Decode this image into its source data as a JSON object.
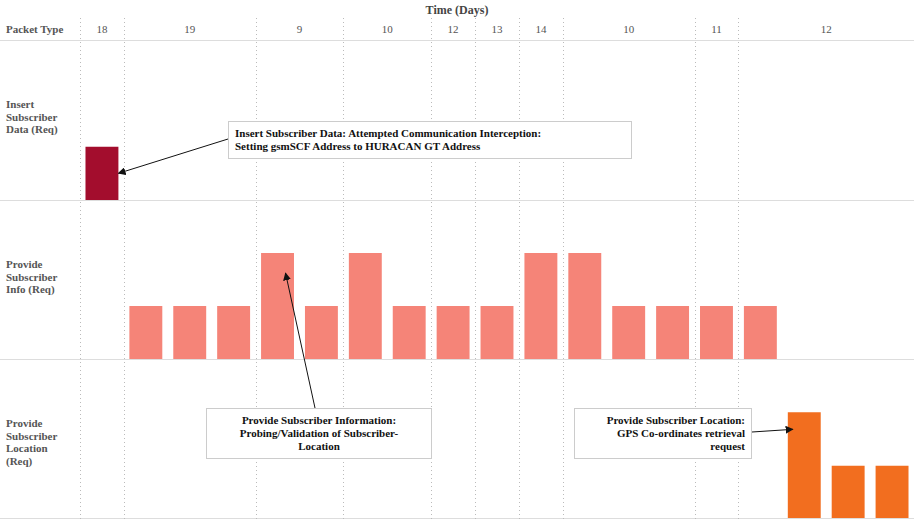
{
  "chart_data": {
    "type": "bar",
    "xlabel": "Time (Days)",
    "ylabel": "Packet Type",
    "categories": [
      "18",
      "19",
      "19",
      "19",
      "9",
      "9",
      "10",
      "10",
      "12",
      "13",
      "14",
      "10",
      "10",
      "10",
      "11",
      "12",
      "12",
      "12",
      "12"
    ],
    "series": [
      {
        "name": "Insert Subscriber Data (Req)",
        "color": "#a30d2d",
        "values": [
          1,
          null,
          null,
          null,
          null,
          null,
          null,
          null,
          null,
          null,
          null,
          null,
          null,
          null,
          null,
          null,
          null,
          null,
          null
        ]
      },
      {
        "name": "Provide Subscriber Info (Req)",
        "color": "#f58478",
        "values": [
          null,
          1,
          1,
          1,
          2,
          1,
          2,
          1,
          1,
          1,
          2,
          2,
          1,
          1,
          1,
          1,
          null,
          null,
          null
        ]
      },
      {
        "name": "Provide Subscriber Location (Req)",
        "color": "#f26e1f",
        "values": [
          null,
          null,
          null,
          null,
          null,
          null,
          null,
          null,
          null,
          null,
          null,
          null,
          null,
          null,
          null,
          null,
          2,
          1,
          1
        ]
      }
    ],
    "ylim": [
      0,
      3
    ],
    "annotations": [
      {
        "text": [
          "Insert Subscriber Data: Attempted Communication Interception:",
          "Setting gsmSCF Address to HURACAN GT Address"
        ]
      },
      {
        "text": [
          "Provide Subscriber Information:",
          "Probing/Validation of Subscriber-",
          "Location"
        ]
      },
      {
        "text": [
          "Provide Subscriber Location:",
          "GPS Co-ordinates retrieval",
          "request"
        ]
      }
    ]
  }
}
